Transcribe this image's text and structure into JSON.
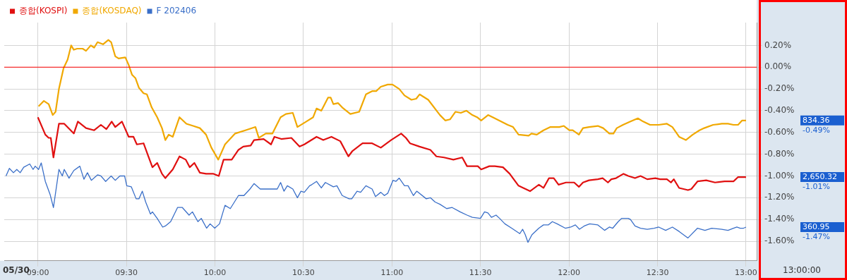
{
  "chart_data": {
    "type": "line",
    "xlim": [
      8.81,
      13.06
    ],
    "ylim": [
      -1.78,
      0.41
    ],
    "xticks": [
      {
        "value": 9,
        "label": "09:00"
      },
      {
        "value": 9.5,
        "label": "09:30"
      },
      {
        "value": 10,
        "label": "10:00"
      },
      {
        "value": 10.5,
        "label": "10:30"
      },
      {
        "value": 11,
        "label": "11:00"
      },
      {
        "value": 11.5,
        "label": "11:30"
      },
      {
        "value": 12,
        "label": "12:00"
      },
      {
        "value": 12.5,
        "label": "12:30"
      },
      {
        "value": 13,
        "label": "13:00"
      }
    ],
    "yticks": [
      {
        "value": 0.2,
        "label": "0.20%"
      },
      {
        "value": 0,
        "label": "0.00%"
      },
      {
        "value": -0.2,
        "label": "-0.20%"
      },
      {
        "value": -0.4,
        "label": "-0.40%"
      },
      {
        "value": -0.6,
        "label": "-0.60%"
      },
      {
        "value": -0.8,
        "label": "-0.80%"
      },
      {
        "value": -1.0,
        "label": "-1.00%"
      },
      {
        "value": -1.2,
        "label": "-1.20%"
      },
      {
        "value": -1.4,
        "label": "-1.40%"
      },
      {
        "value": -1.6,
        "label": "-1.60%"
      }
    ],
    "grid": true,
    "legend": "top left",
    "marker": "none",
    "line_style": "solid",
    "ref_lines": [
      {
        "axis": "y",
        "value": 0,
        "color": "#ff0000"
      }
    ],
    "annotations": [
      "05/30",
      "13:00:00",
      "2,650.32",
      "-1.01%",
      "834.36",
      "-0.49%",
      "360.95",
      "-1.47%"
    ],
    "series": [
      {
        "name": "종합(KOSPI)",
        "color": "#e01010",
        "x": [
          9,
          9.042,
          9.061,
          9.073,
          9.088,
          9.119,
          9.149,
          9.203,
          9.226,
          9.272,
          9.318,
          9.356,
          9.387,
          9.417,
          9.437,
          9.475,
          9.513,
          9.54,
          9.559,
          9.597,
          9.624,
          9.647,
          9.674,
          9.701,
          9.72,
          9.762,
          9.8,
          9.835,
          9.858,
          9.884,
          9.915,
          9.95,
          9.992,
          10.022,
          10.049,
          10.095,
          10.133,
          10.16,
          10.202,
          10.221,
          10.275,
          10.317,
          10.336,
          10.375,
          10.432,
          10.478,
          10.505,
          10.574,
          10.612,
          10.658,
          10.708,
          10.754,
          10.777,
          10.834,
          10.888,
          10.937,
          10.995,
          11.052,
          11.079,
          11.102,
          11.156,
          11.217,
          11.251,
          11.294,
          11.347,
          11.397,
          11.424,
          11.485,
          11.504,
          11.55,
          11.581,
          11.627,
          11.665,
          11.715,
          11.742,
          11.78,
          11.83,
          11.856,
          11.887,
          11.914,
          11.941,
          11.983,
          12.029,
          12.056,
          12.079,
          12.113,
          12.163,
          12.19,
          12.22,
          12.239,
          12.266,
          12.308,
          12.335,
          12.373,
          12.404,
          12.442,
          12.488,
          12.515,
          12.553,
          12.576,
          12.592,
          12.622,
          12.672,
          12.691,
          12.726,
          12.775,
          12.825,
          12.879,
          12.929,
          12.955,
          13
        ],
        "values": [
          -0.46,
          -0.62,
          -0.65,
          -0.65,
          -0.83,
          -0.52,
          -0.52,
          -0.61,
          -0.5,
          -0.56,
          -0.58,
          -0.53,
          -0.57,
          -0.5,
          -0.55,
          -0.5,
          -0.64,
          -0.64,
          -0.71,
          -0.7,
          -0.82,
          -0.92,
          -0.88,
          -0.98,
          -1.02,
          -0.94,
          -0.82,
          -0.85,
          -0.92,
          -0.88,
          -0.97,
          -0.98,
          -0.98,
          -1.0,
          -0.85,
          -0.85,
          -0.76,
          -0.73,
          -0.72,
          -0.67,
          -0.66,
          -0.71,
          -0.64,
          -0.66,
          -0.65,
          -0.73,
          -0.71,
          -0.64,
          -0.67,
          -0.64,
          -0.68,
          -0.82,
          -0.77,
          -0.7,
          -0.7,
          -0.74,
          -0.67,
          -0.61,
          -0.65,
          -0.7,
          -0.73,
          -0.76,
          -0.82,
          -0.83,
          -0.85,
          -0.83,
          -0.91,
          -0.91,
          -0.94,
          -0.91,
          -0.91,
          -0.92,
          -0.98,
          -1.09,
          -1.11,
          -1.14,
          -1.08,
          -1.11,
          -1.02,
          -1.02,
          -1.08,
          -1.06,
          -1.06,
          -1.1,
          -1.06,
          -1.04,
          -1.03,
          -1.02,
          -1.06,
          -1.03,
          -1.02,
          -0.98,
          -1.0,
          -1.02,
          -1.0,
          -1.03,
          -1.02,
          -1.03,
          -1.03,
          -1.06,
          -1.03,
          -1.11,
          -1.13,
          -1.12,
          -1.05,
          -1.04,
          -1.06,
          -1.05,
          -1.05,
          -1.01,
          -1.01
        ]
      },
      {
        "name": "종합(KOSDAQ)",
        "color": "#f0a800",
        "x": [
          9.004,
          9.034,
          9.061,
          9.084,
          9.1,
          9.119,
          9.145,
          9.168,
          9.188,
          9.203,
          9.222,
          9.253,
          9.272,
          9.299,
          9.318,
          9.337,
          9.368,
          9.398,
          9.414,
          9.437,
          9.456,
          9.494,
          9.513,
          9.532,
          9.551,
          9.571,
          9.597,
          9.616,
          9.643,
          9.674,
          9.701,
          9.72,
          9.739,
          9.762,
          9.8,
          9.839,
          9.877,
          9.915,
          9.95,
          9.98,
          10.019,
          10.057,
          10.114,
          10.172,
          10.229,
          10.248,
          10.287,
          10.325,
          10.371,
          10.401,
          10.44,
          10.466,
          10.516,
          10.555,
          10.574,
          10.601,
          10.639,
          10.654,
          10.669,
          10.696,
          10.719,
          10.765,
          10.815,
          10.853,
          10.888,
          10.911,
          10.937,
          10.976,
          11.003,
          11.041,
          11.071,
          11.11,
          11.137,
          11.156,
          11.205,
          11.271,
          11.301,
          11.328,
          11.359,
          11.389,
          11.42,
          11.454,
          11.481,
          11.504,
          11.543,
          11.581,
          11.654,
          11.684,
          11.715,
          11.772,
          11.788,
          11.818,
          11.856,
          11.895,
          11.945,
          11.971,
          12.002,
          12.021,
          12.056,
          12.079,
          12.113,
          12.163,
          12.193,
          12.228,
          12.251,
          12.27,
          12.305,
          12.347,
          12.389,
          12.419,
          12.458,
          12.507,
          12.553,
          12.584,
          12.622,
          12.66,
          12.699,
          12.737,
          12.764,
          12.814,
          12.863,
          12.898,
          12.929,
          12.955,
          12.978,
          13
        ],
        "values": [
          -0.36,
          -0.31,
          -0.34,
          -0.44,
          -0.41,
          -0.2,
          -0.01,
          0.07,
          0.2,
          0.16,
          0.17,
          0.17,
          0.15,
          0.2,
          0.18,
          0.23,
          0.21,
          0.25,
          0.23,
          0.1,
          0.08,
          0.09,
          0.02,
          -0.07,
          -0.1,
          -0.19,
          -0.24,
          -0.25,
          -0.37,
          -0.46,
          -0.56,
          -0.67,
          -0.62,
          -0.64,
          -0.46,
          -0.52,
          -0.54,
          -0.56,
          -0.62,
          -0.74,
          -0.85,
          -0.71,
          -0.61,
          -0.58,
          -0.55,
          -0.65,
          -0.61,
          -0.61,
          -0.46,
          -0.43,
          -0.42,
          -0.55,
          -0.5,
          -0.46,
          -0.38,
          -0.4,
          -0.28,
          -0.28,
          -0.34,
          -0.33,
          -0.37,
          -0.43,
          -0.41,
          -0.25,
          -0.22,
          -0.22,
          -0.18,
          -0.16,
          -0.16,
          -0.2,
          -0.26,
          -0.3,
          -0.29,
          -0.25,
          -0.3,
          -0.44,
          -0.49,
          -0.48,
          -0.41,
          -0.42,
          -0.4,
          -0.44,
          -0.46,
          -0.49,
          -0.44,
          -0.47,
          -0.53,
          -0.55,
          -0.62,
          -0.63,
          -0.61,
          -0.62,
          -0.58,
          -0.55,
          -0.55,
          -0.54,
          -0.58,
          -0.58,
          -0.62,
          -0.56,
          -0.55,
          -0.54,
          -0.56,
          -0.61,
          -0.61,
          -0.56,
          -0.53,
          -0.5,
          -0.47,
          -0.5,
          -0.53,
          -0.53,
          -0.52,
          -0.55,
          -0.64,
          -0.67,
          -0.62,
          -0.58,
          -0.56,
          -0.53,
          -0.52,
          -0.52,
          -0.53,
          -0.53,
          -0.49,
          -0.49
        ]
      },
      {
        "name": "F 202406",
        "color": "#3a6fc8",
        "x": [
          8.82,
          8.839,
          8.862,
          8.881,
          8.9,
          8.92,
          8.954,
          8.973,
          8.985,
          9.004,
          9.019,
          9.042,
          9.069,
          9.088,
          9.119,
          9.138,
          9.149,
          9.176,
          9.203,
          9.237,
          9.26,
          9.28,
          9.302,
          9.337,
          9.356,
          9.383,
          9.414,
          9.437,
          9.463,
          9.49,
          9.502,
          9.528,
          9.555,
          9.571,
          9.59,
          9.609,
          9.636,
          9.647,
          9.674,
          9.705,
          9.72,
          9.75,
          9.789,
          9.816,
          9.854,
          9.873,
          9.904,
          9.923,
          9.953,
          9.973,
          9.999,
          10.026,
          10.057,
          10.087,
          10.133,
          10.164,
          10.198,
          10.221,
          10.256,
          10.287,
          10.325,
          10.352,
          10.371,
          10.39,
          10.409,
          10.44,
          10.466,
          10.486,
          10.505,
          10.535,
          10.547,
          10.574,
          10.601,
          10.624,
          10.669,
          10.689,
          10.719,
          10.758,
          10.773,
          10.803,
          10.823,
          10.853,
          10.888,
          10.907,
          10.937,
          10.957,
          10.976,
          11.006,
          11.022,
          11.041,
          11.071,
          11.091,
          11.121,
          11.14,
          11.194,
          11.217,
          11.244,
          11.271,
          11.309,
          11.34,
          11.385,
          11.424,
          11.454,
          11.5,
          11.523,
          11.542,
          11.562,
          11.588,
          11.608,
          11.638,
          11.676,
          11.722,
          11.738,
          11.753,
          11.768,
          11.791,
          11.83,
          11.856,
          11.883,
          11.906,
          11.933,
          11.979,
          12.01,
          12.036,
          12.059,
          12.086,
          12.117,
          12.163,
          12.201,
          12.228,
          12.247,
          12.278,
          12.297,
          12.335,
          12.347,
          12.373,
          12.404,
          12.442,
          12.481,
          12.507,
          12.546,
          12.584,
          12.622,
          12.672,
          12.726,
          12.768,
          12.806,
          12.863,
          12.898,
          12.929,
          12.948,
          12.967,
          12.986,
          13
        ],
        "values": [
          -1.0,
          -0.93,
          -0.97,
          -0.94,
          -0.97,
          -0.92,
          -0.89,
          -0.94,
          -0.91,
          -0.94,
          -0.88,
          -1.05,
          -1.17,
          -1.29,
          -0.94,
          -1.0,
          -0.94,
          -1.02,
          -0.95,
          -0.91,
          -1.03,
          -0.97,
          -1.04,
          -0.99,
          -1.0,
          -1.05,
          -1.0,
          -1.04,
          -1.0,
          -1.0,
          -1.09,
          -1.1,
          -1.21,
          -1.21,
          -1.14,
          -1.24,
          -1.35,
          -1.33,
          -1.39,
          -1.47,
          -1.46,
          -1.42,
          -1.29,
          -1.29,
          -1.36,
          -1.33,
          -1.42,
          -1.39,
          -1.48,
          -1.44,
          -1.48,
          -1.44,
          -1.27,
          -1.3,
          -1.18,
          -1.18,
          -1.12,
          -1.07,
          -1.12,
          -1.12,
          -1.12,
          -1.12,
          -1.06,
          -1.14,
          -1.09,
          -1.12,
          -1.2,
          -1.14,
          -1.15,
          -1.09,
          -1.08,
          -1.05,
          -1.11,
          -1.06,
          -1.1,
          -1.09,
          -1.18,
          -1.21,
          -1.21,
          -1.14,
          -1.15,
          -1.09,
          -1.12,
          -1.19,
          -1.15,
          -1.18,
          -1.16,
          -1.04,
          -1.05,
          -1.02,
          -1.09,
          -1.09,
          -1.18,
          -1.14,
          -1.21,
          -1.2,
          -1.24,
          -1.26,
          -1.3,
          -1.29,
          -1.33,
          -1.36,
          -1.38,
          -1.39,
          -1.33,
          -1.34,
          -1.38,
          -1.36,
          -1.39,
          -1.44,
          -1.48,
          -1.53,
          -1.49,
          -1.54,
          -1.61,
          -1.54,
          -1.48,
          -1.45,
          -1.45,
          -1.42,
          -1.44,
          -1.48,
          -1.47,
          -1.45,
          -1.49,
          -1.46,
          -1.44,
          -1.45,
          -1.5,
          -1.47,
          -1.48,
          -1.42,
          -1.39,
          -1.39,
          -1.4,
          -1.46,
          -1.48,
          -1.49,
          -1.48,
          -1.47,
          -1.5,
          -1.47,
          -1.51,
          -1.57,
          -1.48,
          -1.5,
          -1.48,
          -1.49,
          -1.5,
          -1.48,
          -1.47,
          -1.48,
          -1.48,
          -1.47
        ]
      }
    ]
  }
}
